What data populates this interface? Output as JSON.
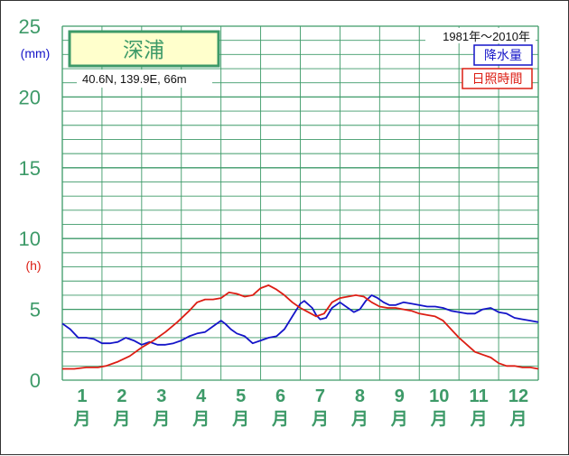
{
  "chart_data": {
    "type": "line",
    "title": "深浦",
    "location": "40.6N,  139.9E,  66m",
    "period": "1981年〜2010年",
    "y_unit_precip": "(mm)",
    "y_unit_sun": "(h)",
    "ylim": [
      0,
      25
    ],
    "y_ticks": [
      "0",
      "5",
      "10",
      "15",
      "20",
      "25"
    ],
    "xlim": [
      0.5,
      12.5
    ],
    "month_numbers": [
      "1",
      "2",
      "3",
      "4",
      "5",
      "6",
      "7",
      "8",
      "9",
      "10",
      "11",
      "12"
    ],
    "month_suffix": "月",
    "grid": true,
    "legend_position": "top-right",
    "series": [
      {
        "name": "降水量",
        "color": "#1414c8",
        "x": [
          0.5,
          0.7,
          0.9,
          1.1,
          1.3,
          1.5,
          1.7,
          1.9,
          2.1,
          2.3,
          2.5,
          2.7,
          2.9,
          3.1,
          3.3,
          3.5,
          3.7,
          3.9,
          4.1,
          4.3,
          4.5,
          4.6,
          4.75,
          4.9,
          5.1,
          5.3,
          5.5,
          5.7,
          5.9,
          6.1,
          6.3,
          6.5,
          6.6,
          6.8,
          6.9,
          7.0,
          7.15,
          7.3,
          7.5,
          7.7,
          7.85,
          8.0,
          8.15,
          8.3,
          8.45,
          8.6,
          8.75,
          8.9,
          9.1,
          9.3,
          9.5,
          9.7,
          9.9,
          10.1,
          10.3,
          10.5,
          10.7,
          10.9,
          11.1,
          11.3,
          11.5,
          11.7,
          11.9,
          12.1,
          12.3,
          12.5
        ],
        "values": [
          4.0,
          3.6,
          3.0,
          3.0,
          2.9,
          2.6,
          2.6,
          2.7,
          3.0,
          2.8,
          2.5,
          2.7,
          2.5,
          2.5,
          2.6,
          2.8,
          3.1,
          3.3,
          3.4,
          3.8,
          4.2,
          4.0,
          3.6,
          3.3,
          3.1,
          2.6,
          2.8,
          3.0,
          3.1,
          3.6,
          4.5,
          5.4,
          5.6,
          5.1,
          4.6,
          4.3,
          4.4,
          5.1,
          5.5,
          5.1,
          4.8,
          5.0,
          5.6,
          6.0,
          5.8,
          5.5,
          5.3,
          5.3,
          5.5,
          5.4,
          5.3,
          5.2,
          5.2,
          5.1,
          4.9,
          4.8,
          4.7,
          4.7,
          5.0,
          5.1,
          4.8,
          4.7,
          4.4,
          4.3,
          4.2,
          4.1
        ]
      },
      {
        "name": "日照時間",
        "color": "#dc1e14",
        "x": [
          0.5,
          0.8,
          1.1,
          1.4,
          1.6,
          1.9,
          2.2,
          2.5,
          2.8,
          3.1,
          3.4,
          3.7,
          3.9,
          4.1,
          4.3,
          4.5,
          4.7,
          4.9,
          5.1,
          5.3,
          5.5,
          5.7,
          5.9,
          6.1,
          6.3,
          6.5,
          6.7,
          6.9,
          7.1,
          7.3,
          7.5,
          7.7,
          7.9,
          8.1,
          8.3,
          8.5,
          8.7,
          8.9,
          9.1,
          9.3,
          9.5,
          9.7,
          9.9,
          10.1,
          10.3,
          10.5,
          10.7,
          10.9,
          11.1,
          11.3,
          11.5,
          11.7,
          11.9,
          12.1,
          12.3,
          12.5
        ],
        "values": [
          0.8,
          0.8,
          0.9,
          0.9,
          1.0,
          1.3,
          1.7,
          2.3,
          2.8,
          3.4,
          4.1,
          4.9,
          5.5,
          5.7,
          5.7,
          5.8,
          6.2,
          6.1,
          5.9,
          6.0,
          6.5,
          6.7,
          6.4,
          6.0,
          5.5,
          5.1,
          4.8,
          4.5,
          4.7,
          5.5,
          5.8,
          5.9,
          6.0,
          5.9,
          5.5,
          5.2,
          5.1,
          5.1,
          5.0,
          4.9,
          4.7,
          4.6,
          4.5,
          4.2,
          3.6,
          3.0,
          2.5,
          2.0,
          1.8,
          1.6,
          1.2,
          1.0,
          1.0,
          0.9,
          0.9,
          0.8
        ]
      }
    ]
  },
  "colors": {
    "grid": "#3d9a68",
    "axis_labels": "#3d9a68",
    "title_box_bg": "#ffffcc",
    "title_box_border": "#3d9a68",
    "unit_precip": "#1414c8",
    "unit_sun": "#dc1e14"
  }
}
